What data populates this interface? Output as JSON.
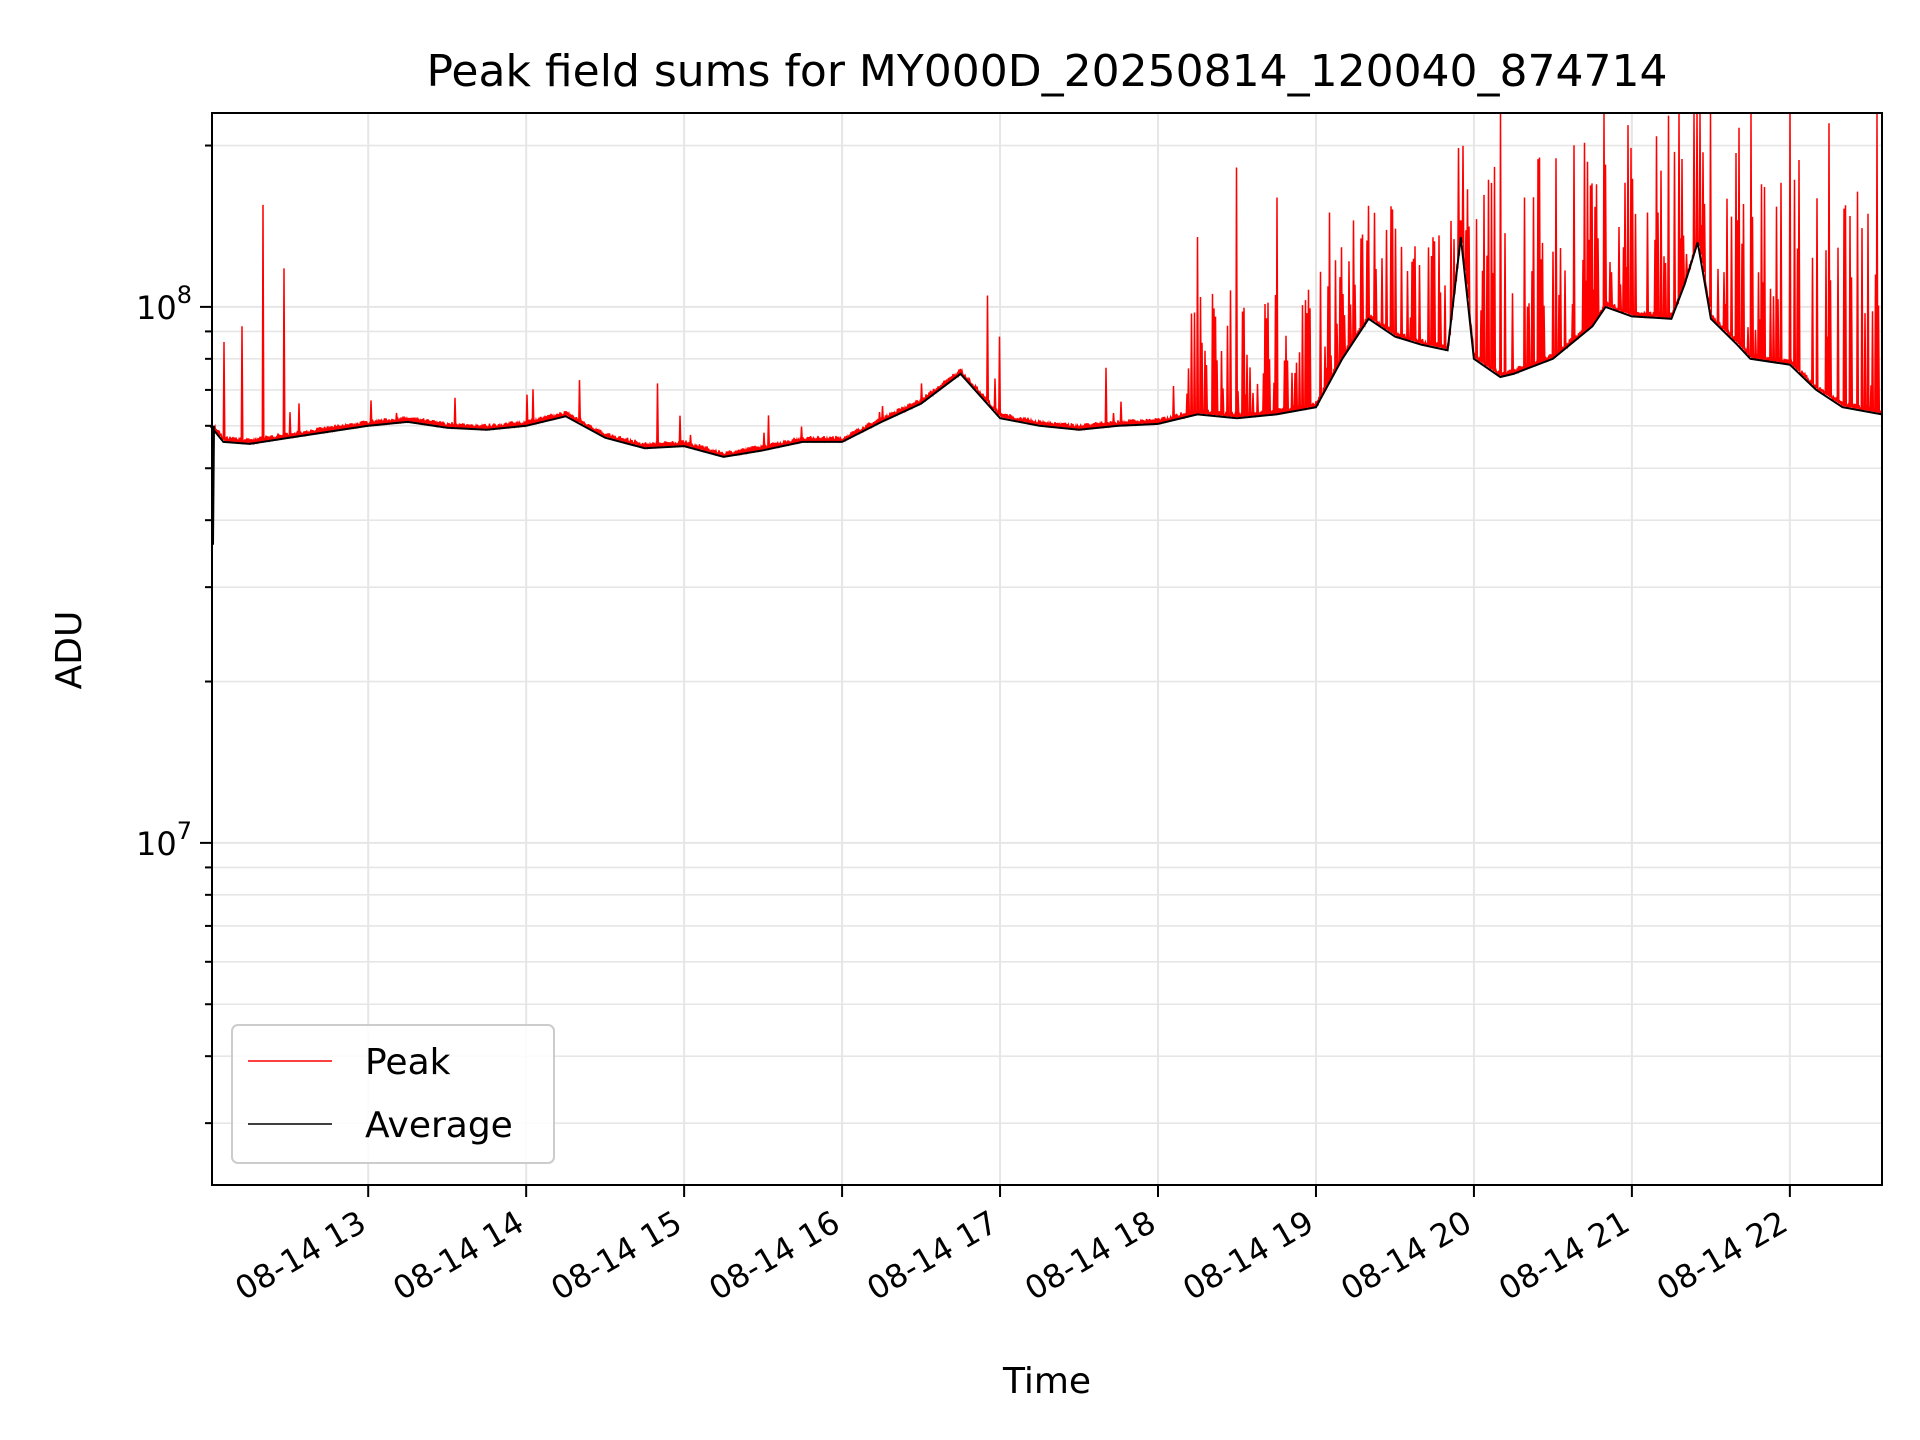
{
  "chart_data": {
    "type": "line",
    "title": "Peak field sums for MY000D_20250814_120040_874714",
    "xlabel": "Time",
    "ylabel": "ADU",
    "y_scale": "log",
    "ylim": [
      2300000,
      230000000
    ],
    "xlim": [
      "2025-08-14 12:00:40",
      "2025-08-14 22:35:00"
    ],
    "grid": true,
    "legend_position": "lower-left",
    "x_tick_labels": [
      "08-14 13",
      "08-14 14",
      "08-14 15",
      "08-14 16",
      "08-14 17",
      "08-14 18",
      "08-14 19",
      "08-14 20",
      "08-14 21",
      "08-14 22"
    ],
    "y_tick_labels": [
      {
        "value": 10000000,
        "base": "10",
        "exp": "7"
      },
      {
        "value": 100000000,
        "base": "10",
        "exp": "8"
      }
    ],
    "x": [
      "12:00",
      "12:05",
      "12:15",
      "12:30",
      "12:45",
      "13:00",
      "13:15",
      "13:30",
      "13:45",
      "14:00",
      "14:15",
      "14:30",
      "14:45",
      "15:00",
      "15:15",
      "15:30",
      "15:45",
      "16:00",
      "16:15",
      "16:30",
      "16:45",
      "17:00",
      "17:15",
      "17:30",
      "17:45",
      "18:00",
      "18:15",
      "18:30",
      "18:45",
      "19:00",
      "19:10",
      "19:20",
      "19:30",
      "19:40",
      "19:45",
      "19:50",
      "19:55",
      "20:00",
      "20:10",
      "20:15",
      "20:30",
      "20:45",
      "20:50",
      "21:00",
      "21:15",
      "21:20",
      "21:25",
      "21:30",
      "21:40",
      "21:45",
      "22:00",
      "22:10",
      "22:20",
      "22:35"
    ],
    "series": [
      {
        "name": "Average",
        "color": "#000000",
        "values": [
          60000000,
          56000000,
          55500000,
          57000000,
          58500000,
          60000000,
          61000000,
          59500000,
          59000000,
          60000000,
          62500000,
          57000000,
          54500000,
          55000000,
          52500000,
          54000000,
          56000000,
          56000000,
          61000000,
          66000000,
          75000000,
          62000000,
          60000000,
          59000000,
          60000000,
          60500000,
          63000000,
          62000000,
          63000000,
          65000000,
          80000000,
          95000000,
          88000000,
          85000000,
          84000000,
          83000000,
          135000000,
          80000000,
          74000000,
          75000000,
          80000000,
          92000000,
          100000000,
          96000000,
          95000000,
          110000000,
          132000000,
          95000000,
          85000000,
          80000000,
          78000000,
          70000000,
          65000000,
          63000000
        ]
      },
      {
        "name": "Peak",
        "color": "#ff0000",
        "spikes": [
          {
            "t": "12:05",
            "value": 86000000
          },
          {
            "t": "12:12",
            "value": 92000000
          },
          {
            "t": "12:20",
            "value": 155000000
          },
          {
            "t": "12:28",
            "value": 118000000
          },
          {
            "t": "14:20",
            "value": 73000000
          },
          {
            "t": "14:50",
            "value": 72000000
          },
          {
            "t": "16:30",
            "value": 72000000
          },
          {
            "t": "16:55",
            "value": 105000000
          },
          {
            "t": "17:00",
            "value": 88000000
          },
          {
            "t": "17:40",
            "value": 77000000
          },
          {
            "t": "18:15",
            "value": 135000000
          },
          {
            "t": "18:30",
            "value": 182000000
          },
          {
            "t": "18:45",
            "value": 160000000
          },
          {
            "t": "19:05",
            "value": 150000000
          },
          {
            "t": "19:30",
            "value": 140000000
          },
          {
            "t": "19:55",
            "value": 145000000
          },
          {
            "t": "20:10",
            "value": 230000000
          },
          {
            "t": "20:25",
            "value": 190000000
          },
          {
            "t": "20:45",
            "value": 170000000
          },
          {
            "t": "21:10",
            "value": 150000000
          },
          {
            "t": "21:30",
            "value": 230000000
          },
          {
            "t": "21:45",
            "value": 230000000
          },
          {
            "t": "22:00",
            "value": 230000000
          },
          {
            "t": "22:15",
            "value": 220000000
          },
          {
            "t": "22:33",
            "value": 230000000
          }
        ]
      }
    ]
  }
}
